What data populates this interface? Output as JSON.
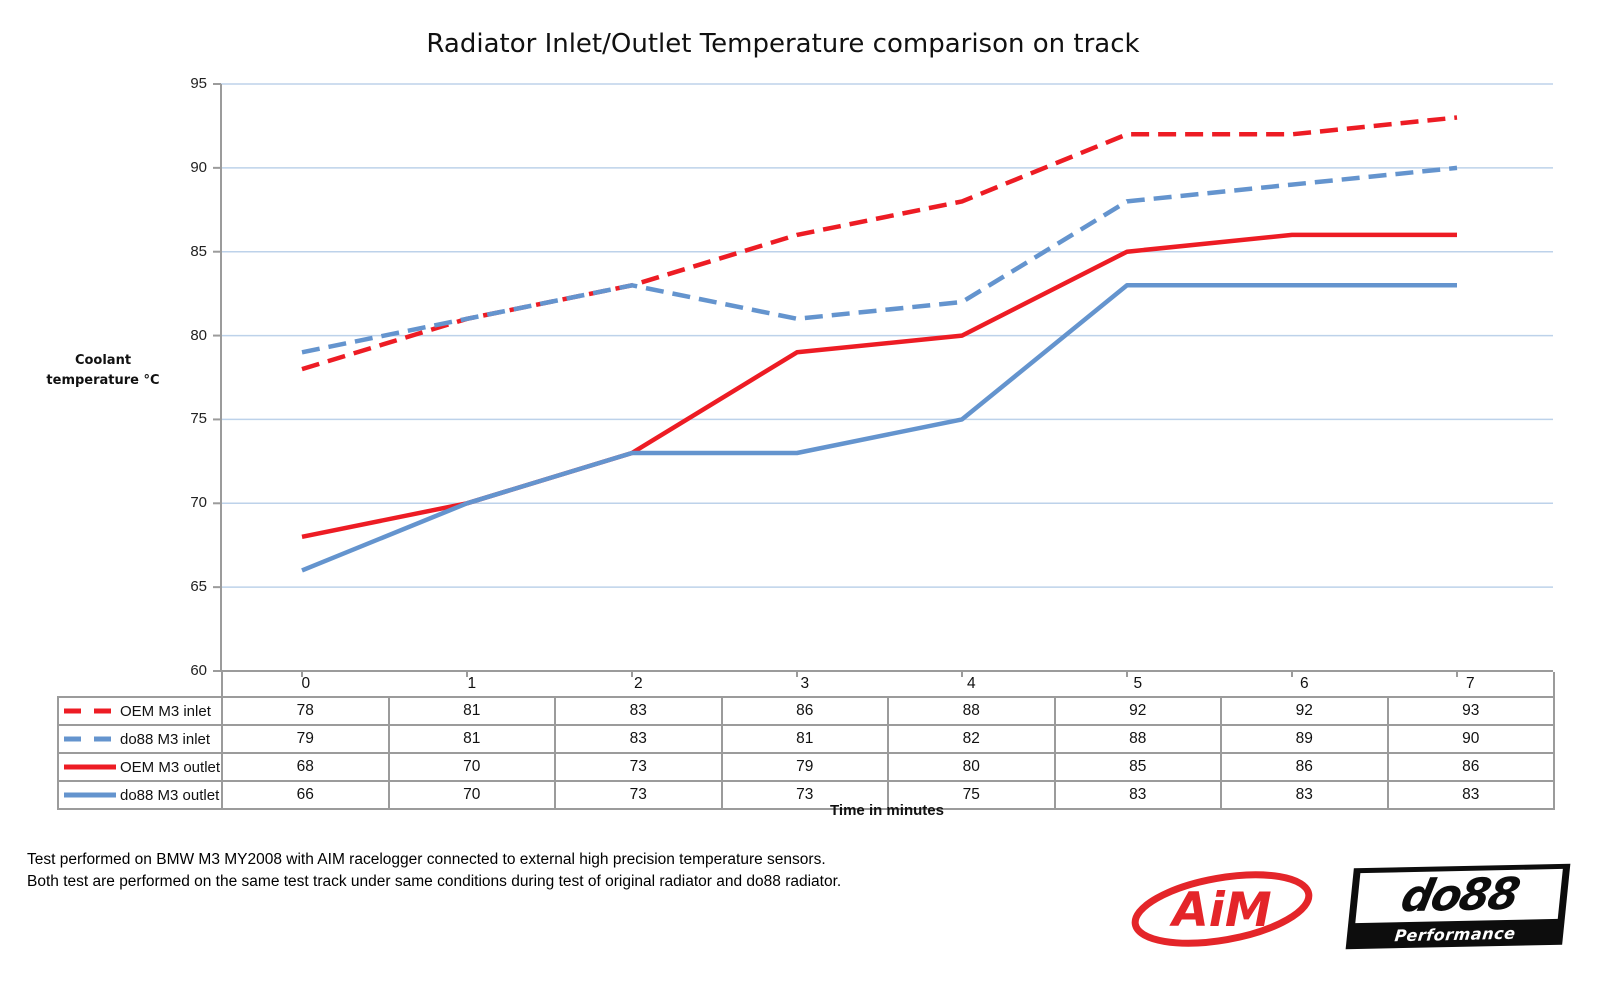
{
  "title": "Radiator Inlet/Outlet Temperature comparison on track",
  "chart_data": {
    "type": "line",
    "title": "Radiator Inlet/Outlet Temperature comparison on track",
    "x": [
      0,
      1,
      2,
      3,
      4,
      5,
      6,
      7
    ],
    "xlabel": "Time in minutes",
    "ylabel": "Coolant temperature °C",
    "ylabel_lines": [
      "Coolant",
      "temperature °C"
    ],
    "ylim": [
      60,
      95
    ],
    "ytick_step": 5,
    "grid": true,
    "legend_position": "left column of data table below chart",
    "series": [
      {
        "name": "OEM M3 inlet",
        "color": "#ed1c24",
        "dash": "dashed",
        "values": [
          78,
          81,
          83,
          86,
          88,
          92,
          92,
          93
        ]
      },
      {
        "name": "do88 M3 inlet",
        "color": "#6494ce",
        "dash": "dashed",
        "values": [
          79,
          81,
          83,
          81,
          82,
          88,
          89,
          90
        ]
      },
      {
        "name": "OEM M3 outlet",
        "color": "#ed1c24",
        "dash": "solid",
        "values": [
          68,
          70,
          73,
          79,
          80,
          85,
          86,
          86
        ]
      },
      {
        "name": "do88 M3 outlet",
        "color": "#6494ce",
        "dash": "solid",
        "values": [
          66,
          70,
          73,
          73,
          75,
          83,
          83,
          83
        ]
      }
    ]
  },
  "colors": {
    "grid": "#bdd2ea",
    "axis": "#9b9b9b",
    "series_red": "#ed1c24",
    "series_blue": "#6494ce",
    "aim_red": "#e42529",
    "logo_black": "#0d0d0d"
  },
  "footer": {
    "line1": "Test performed on BMW M3 MY2008 with AIM racelogger connected to external high precision temperature sensors.",
    "line2": "Both test are performed on the same test track under same conditions during test of original radiator and do88 radiator."
  },
  "logos": {
    "aim_text": "AiM",
    "do88_text": "do88",
    "do88_subtext": "Performance"
  }
}
